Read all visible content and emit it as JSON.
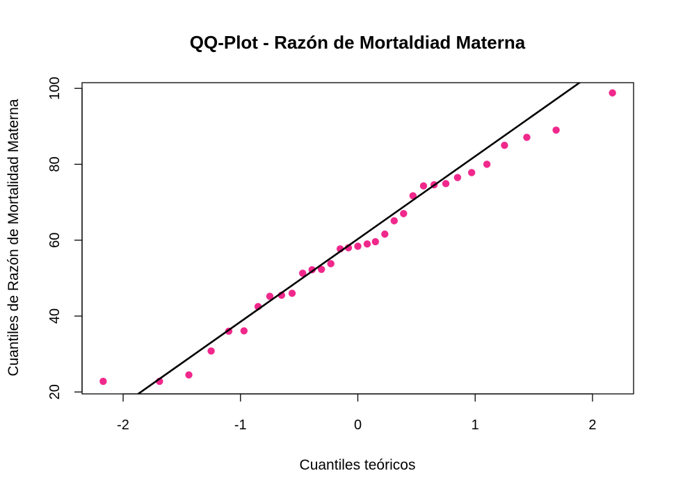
{
  "chart_data": {
    "type": "scatter",
    "title": "QQ-Plot - Razón de Mortaldiad Materna",
    "xlabel": "Cuantiles teóricos",
    "ylabel": "Cuantiles de Razón de Mortalidad Materna",
    "xlim": [
      -2.35,
      2.35
    ],
    "ylim": [
      19.5,
      101.5
    ],
    "xticks": [
      -2,
      -1,
      0,
      1,
      2
    ],
    "xtick_labels": [
      "-2",
      "-1",
      "0",
      "1",
      "2"
    ],
    "yticks": [
      20,
      40,
      60,
      80,
      100
    ],
    "ytick_labels": [
      "20",
      "40",
      "60",
      "80",
      "100"
    ],
    "grid": false,
    "legend": "none",
    "point_color": "#f0288c",
    "line_color": "#000000",
    "points": {
      "x": [
        -2.17,
        -1.69,
        -1.44,
        -1.25,
        -1.1,
        -0.97,
        -0.85,
        -0.75,
        -0.65,
        -0.56,
        -0.47,
        -0.39,
        -0.31,
        -0.23,
        -0.15,
        -0.08,
        0.0,
        0.08,
        0.15,
        0.23,
        0.31,
        0.39,
        0.47,
        0.56,
        0.65,
        0.75,
        0.85,
        0.97,
        1.1,
        1.25,
        1.44,
        1.69,
        2.17
      ],
      "y": [
        22.8,
        22.8,
        24.5,
        30.8,
        36.0,
        36.1,
        42.5,
        45.2,
        45.5,
        46.0,
        51.3,
        52.2,
        52.3,
        53.8,
        57.7,
        58.0,
        58.4,
        59.0,
        59.6,
        61.6,
        65.1,
        67.0,
        71.7,
        74.3,
        74.6,
        74.9,
        76.5,
        77.8,
        80.0,
        85.0,
        87.1,
        89.0,
        98.8
      ]
    },
    "reference_line": {
      "intercept": 60.3,
      "slope": 21.8
    }
  }
}
